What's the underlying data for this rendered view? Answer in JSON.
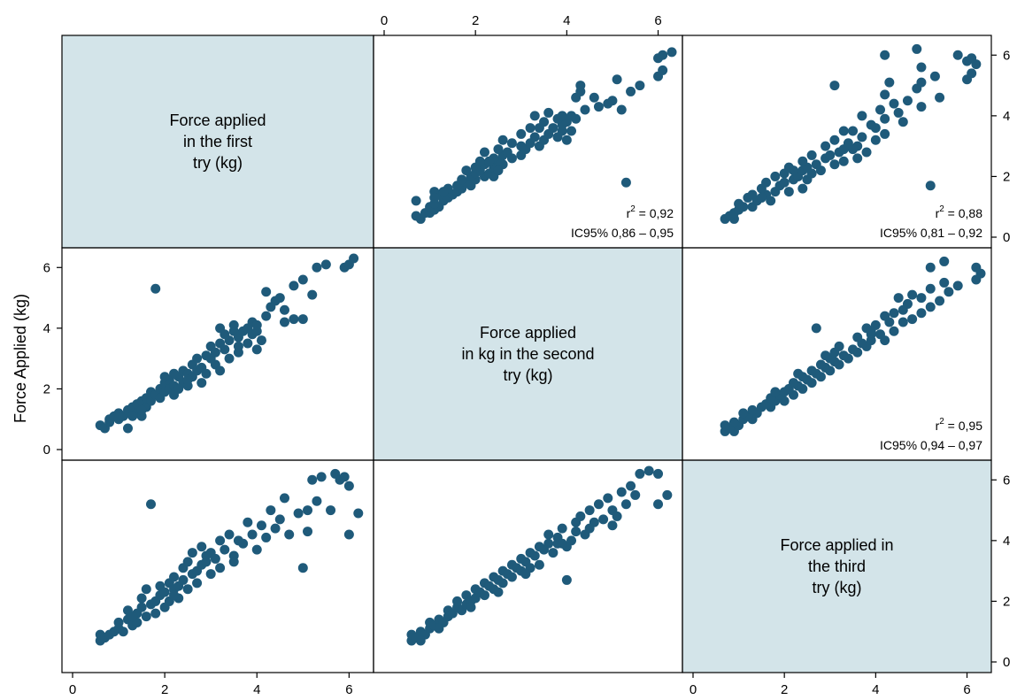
{
  "chart_data": {
    "type": "scatter",
    "title": "",
    "ylabel": "Force Applied (kg)",
    "axis_ticks": [
      "0",
      "2",
      "4",
      "6"
    ],
    "xlim": [
      0,
      6.3
    ],
    "ylim": [
      0,
      6.3
    ],
    "point_color": "#1f5a7a",
    "diagonal_color": "#d3e4e9",
    "variables": [
      [
        "Force applied",
        "in the first",
        "try (kg)"
      ],
      [
        "Force applied",
        "in kg in the second",
        "try (kg)"
      ],
      [
        "Force applied in",
        "the third",
        "try (kg)"
      ]
    ],
    "stats": [
      {
        "row": 0,
        "col": 1,
        "r2_label": "r",
        "r2_sup": "2",
        "r2_value": " = 0,92",
        "ci": "IC95% 0,86 – 0,95"
      },
      {
        "row": 0,
        "col": 2,
        "r2_label": "r",
        "r2_sup": "2",
        "r2_value": " = 0,88",
        "ci": "IC95% 0,81 – 0,92"
      },
      {
        "row": 1,
        "col": 2,
        "r2_label": "r",
        "r2_sup": "2",
        "r2_value": " = 0,95",
        "ci": "IC95% 0,94 – 0,97"
      }
    ],
    "pairs": [
      {
        "name": "first-vs-second",
        "points": [
          [
            0.6,
            0.8
          ],
          [
            0.7,
            0.7
          ],
          [
            0.8,
            0.9
          ],
          [
            0.8,
            1.0
          ],
          [
            0.9,
            1.1
          ],
          [
            1.0,
            1.0
          ],
          [
            1.0,
            1.2
          ],
          [
            1.1,
            1.1
          ],
          [
            1.2,
            1.3
          ],
          [
            1.2,
            0.7
          ],
          [
            1.3,
            1.4
          ],
          [
            1.4,
            1.5
          ],
          [
            1.4,
            1.2
          ],
          [
            1.5,
            1.6
          ],
          [
            1.5,
            1.1
          ],
          [
            1.6,
            1.4
          ],
          [
            1.6,
            1.7
          ],
          [
            1.7,
            1.6
          ],
          [
            1.7,
            1.9
          ],
          [
            1.8,
            1.8
          ],
          [
            1.8,
            5.3
          ],
          [
            1.9,
            2.0
          ],
          [
            1.9,
            1.7
          ],
          [
            2.0,
            2.2
          ],
          [
            2.0,
            1.9
          ],
          [
            2.1,
            2.0
          ],
          [
            2.1,
            2.3
          ],
          [
            2.2,
            2.1
          ],
          [
            2.2,
            1.8
          ],
          [
            2.3,
            2.4
          ],
          [
            2.3,
            2.0
          ],
          [
            2.4,
            2.2
          ],
          [
            2.4,
            2.6
          ],
          [
            2.5,
            2.5
          ],
          [
            2.5,
            2.1
          ],
          [
            2.6,
            2.4
          ],
          [
            2.6,
            2.8
          ],
          [
            2.7,
            2.6
          ],
          [
            2.7,
            3.0
          ],
          [
            2.8,
            2.7
          ],
          [
            2.8,
            2.2
          ],
          [
            2.9,
            3.1
          ],
          [
            3.0,
            3.0
          ],
          [
            3.0,
            3.4
          ],
          [
            3.1,
            3.2
          ],
          [
            3.1,
            2.8
          ],
          [
            3.2,
            3.5
          ],
          [
            3.2,
            4.0
          ],
          [
            3.3,
            3.3
          ],
          [
            3.3,
            3.8
          ],
          [
            3.4,
            3.6
          ],
          [
            3.4,
            3.0
          ],
          [
            3.5,
            3.9
          ],
          [
            3.5,
            4.1
          ],
          [
            3.6,
            3.7
          ],
          [
            3.6,
            3.2
          ],
          [
            3.7,
            3.9
          ],
          [
            3.8,
            4.0
          ],
          [
            3.8,
            3.5
          ],
          [
            3.9,
            4.2
          ],
          [
            3.9,
            3.8
          ],
          [
            4.0,
            3.9
          ],
          [
            4.0,
            4.1
          ],
          [
            4.1,
            3.6
          ],
          [
            4.2,
            4.4
          ],
          [
            4.2,
            5.2
          ],
          [
            4.4,
            4.9
          ],
          [
            4.5,
            5.0
          ],
          [
            4.6,
            4.6
          ],
          [
            4.6,
            4.2
          ],
          [
            4.8,
            5.4
          ],
          [
            4.8,
            4.3
          ],
          [
            5.0,
            5.6
          ],
          [
            5.0,
            4.3
          ],
          [
            5.2,
            5.1
          ],
          [
            5.3,
            6.0
          ],
          [
            5.5,
            6.1
          ],
          [
            5.9,
            6.0
          ],
          [
            6.0,
            6.1
          ],
          [
            6.1,
            6.3
          ],
          [
            1.3,
            1.1
          ],
          [
            1.5,
            1.3
          ],
          [
            2.0,
            2.4
          ],
          [
            2.2,
            2.5
          ],
          [
            2.5,
            2.3
          ],
          [
            2.9,
            2.5
          ],
          [
            3.2,
            2.6
          ],
          [
            3.6,
            3.4
          ],
          [
            4.0,
            3.3
          ],
          [
            4.3,
            4.7
          ]
        ]
      },
      {
        "name": "first-vs-third",
        "points": [
          [
            0.6,
            0.7
          ],
          [
            0.6,
            0.9
          ],
          [
            0.7,
            0.8
          ],
          [
            0.8,
            0.9
          ],
          [
            0.9,
            1.0
          ],
          [
            1.0,
            1.1
          ],
          [
            1.0,
            1.3
          ],
          [
            1.1,
            1.0
          ],
          [
            1.2,
            1.4
          ],
          [
            1.2,
            1.7
          ],
          [
            1.3,
            1.2
          ],
          [
            1.4,
            1.6
          ],
          [
            1.4,
            1.3
          ],
          [
            1.5,
            1.8
          ],
          [
            1.5,
            2.1
          ],
          [
            1.6,
            1.5
          ],
          [
            1.6,
            2.4
          ],
          [
            1.7,
            1.9
          ],
          [
            1.7,
            5.2
          ],
          [
            1.8,
            2.0
          ],
          [
            1.8,
            1.6
          ],
          [
            1.9,
            2.2
          ],
          [
            1.9,
            2.5
          ],
          [
            2.0,
            2.3
          ],
          [
            2.0,
            1.8
          ],
          [
            2.1,
            2.6
          ],
          [
            2.1,
            2.0
          ],
          [
            2.2,
            2.4
          ],
          [
            2.2,
            2.8
          ],
          [
            2.3,
            2.5
          ],
          [
            2.3,
            2.1
          ],
          [
            2.4,
            2.7
          ],
          [
            2.4,
            3.1
          ],
          [
            2.5,
            3.3
          ],
          [
            2.5,
            2.4
          ],
          [
            2.6,
            2.9
          ],
          [
            2.6,
            3.6
          ],
          [
            2.7,
            3.0
          ],
          [
            2.7,
            2.6
          ],
          [
            2.8,
            3.2
          ],
          [
            2.8,
            3.8
          ],
          [
            2.9,
            3.3
          ],
          [
            3.0,
            2.9
          ],
          [
            3.0,
            3.6
          ],
          [
            3.1,
            3.4
          ],
          [
            3.2,
            4.0
          ],
          [
            3.2,
            3.1
          ],
          [
            3.3,
            3.7
          ],
          [
            3.4,
            4.2
          ],
          [
            3.5,
            3.5
          ],
          [
            3.6,
            4.0
          ],
          [
            3.7,
            3.9
          ],
          [
            3.8,
            4.6
          ],
          [
            3.9,
            4.2
          ],
          [
            4.0,
            3.7
          ],
          [
            4.1,
            4.5
          ],
          [
            4.2,
            4.1
          ],
          [
            4.3,
            5.0
          ],
          [
            4.5,
            4.7
          ],
          [
            4.6,
            5.4
          ],
          [
            4.7,
            4.2
          ],
          [
            4.9,
            4.9
          ],
          [
            5.0,
            3.1
          ],
          [
            5.1,
            5.0
          ],
          [
            5.2,
            6.0
          ],
          [
            5.3,
            5.3
          ],
          [
            5.4,
            6.1
          ],
          [
            5.6,
            5.0
          ],
          [
            5.7,
            6.2
          ],
          [
            5.8,
            6.0
          ],
          [
            5.9,
            6.1
          ],
          [
            6.0,
            4.2
          ],
          [
            6.0,
            5.8
          ],
          [
            6.2,
            4.9
          ],
          [
            5.1,
            4.3
          ],
          [
            4.4,
            4.4
          ],
          [
            3.5,
            3.3
          ],
          [
            2.9,
            3.5
          ],
          [
            2.2,
            2.2
          ],
          [
            1.3,
            1.5
          ]
        ]
      },
      {
        "name": "second-vs-third",
        "points": [
          [
            0.6,
            0.7
          ],
          [
            0.6,
            0.9
          ],
          [
            0.7,
            0.8
          ],
          [
            0.8,
            1.0
          ],
          [
            0.9,
            0.9
          ],
          [
            1.0,
            1.1
          ],
          [
            1.0,
            1.3
          ],
          [
            1.1,
            1.2
          ],
          [
            1.2,
            1.4
          ],
          [
            1.3,
            1.3
          ],
          [
            1.4,
            1.5
          ],
          [
            1.4,
            1.7
          ],
          [
            1.5,
            1.6
          ],
          [
            1.6,
            1.8
          ],
          [
            1.6,
            2.0
          ],
          [
            1.7,
            1.7
          ],
          [
            1.8,
            1.9
          ],
          [
            1.8,
            2.2
          ],
          [
            1.9,
            2.0
          ],
          [
            2.0,
            2.1
          ],
          [
            2.0,
            2.4
          ],
          [
            2.1,
            2.3
          ],
          [
            2.2,
            2.2
          ],
          [
            2.2,
            2.6
          ],
          [
            2.3,
            2.5
          ],
          [
            2.4,
            2.4
          ],
          [
            2.4,
            2.8
          ],
          [
            2.5,
            2.7
          ],
          [
            2.6,
            2.6
          ],
          [
            2.6,
            3.0
          ],
          [
            2.7,
            2.9
          ],
          [
            2.8,
            3.2
          ],
          [
            2.8,
            2.8
          ],
          [
            2.9,
            3.1
          ],
          [
            3.0,
            3.4
          ],
          [
            3.0,
            3.0
          ],
          [
            3.1,
            3.3
          ],
          [
            3.2,
            3.6
          ],
          [
            3.2,
            3.1
          ],
          [
            3.3,
            3.5
          ],
          [
            3.4,
            3.8
          ],
          [
            3.4,
            3.2
          ],
          [
            3.5,
            3.7
          ],
          [
            3.6,
            3.9
          ],
          [
            3.6,
            4.2
          ],
          [
            3.7,
            3.6
          ],
          [
            3.8,
            4.1
          ],
          [
            3.8,
            3.9
          ],
          [
            3.9,
            4.4
          ],
          [
            4.0,
            3.8
          ],
          [
            4.0,
            2.7
          ],
          [
            4.1,
            4.0
          ],
          [
            4.2,
            4.6
          ],
          [
            4.2,
            4.3
          ],
          [
            4.3,
            4.8
          ],
          [
            4.4,
            4.2
          ],
          [
            4.5,
            5.0
          ],
          [
            4.6,
            4.6
          ],
          [
            4.7,
            5.2
          ],
          [
            4.8,
            4.7
          ],
          [
            4.9,
            5.4
          ],
          [
            5.0,
            5.0
          ],
          [
            5.0,
            4.5
          ],
          [
            5.2,
            5.6
          ],
          [
            5.3,
            5.2
          ],
          [
            5.4,
            5.8
          ],
          [
            5.5,
            5.5
          ],
          [
            5.6,
            6.2
          ],
          [
            5.8,
            6.3
          ],
          [
            6.0,
            6.2
          ],
          [
            6.0,
            5.2
          ],
          [
            6.2,
            5.5
          ],
          [
            5.1,
            4.8
          ],
          [
            4.5,
            4.4
          ],
          [
            3.9,
            3.9
          ],
          [
            3.1,
            2.9
          ],
          [
            2.5,
            2.3
          ],
          [
            1.9,
            1.8
          ],
          [
            1.2,
            1.1
          ],
          [
            0.8,
            0.7
          ]
        ]
      }
    ]
  }
}
